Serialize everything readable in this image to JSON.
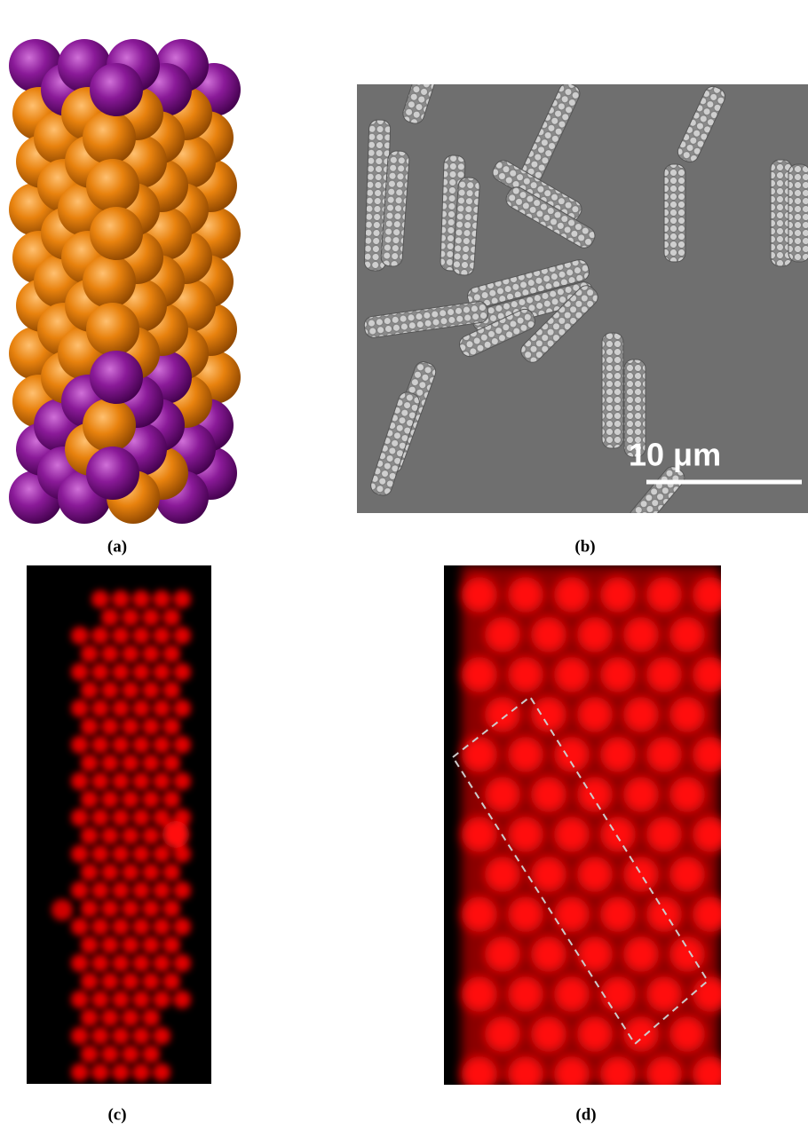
{
  "figure": {
    "panels": [
      {
        "label": "(a)"
      },
      {
        "label": "(b)",
        "scale_bar": "10 μm"
      },
      {
        "label": "(c)"
      },
      {
        "label": "(d)"
      }
    ]
  }
}
